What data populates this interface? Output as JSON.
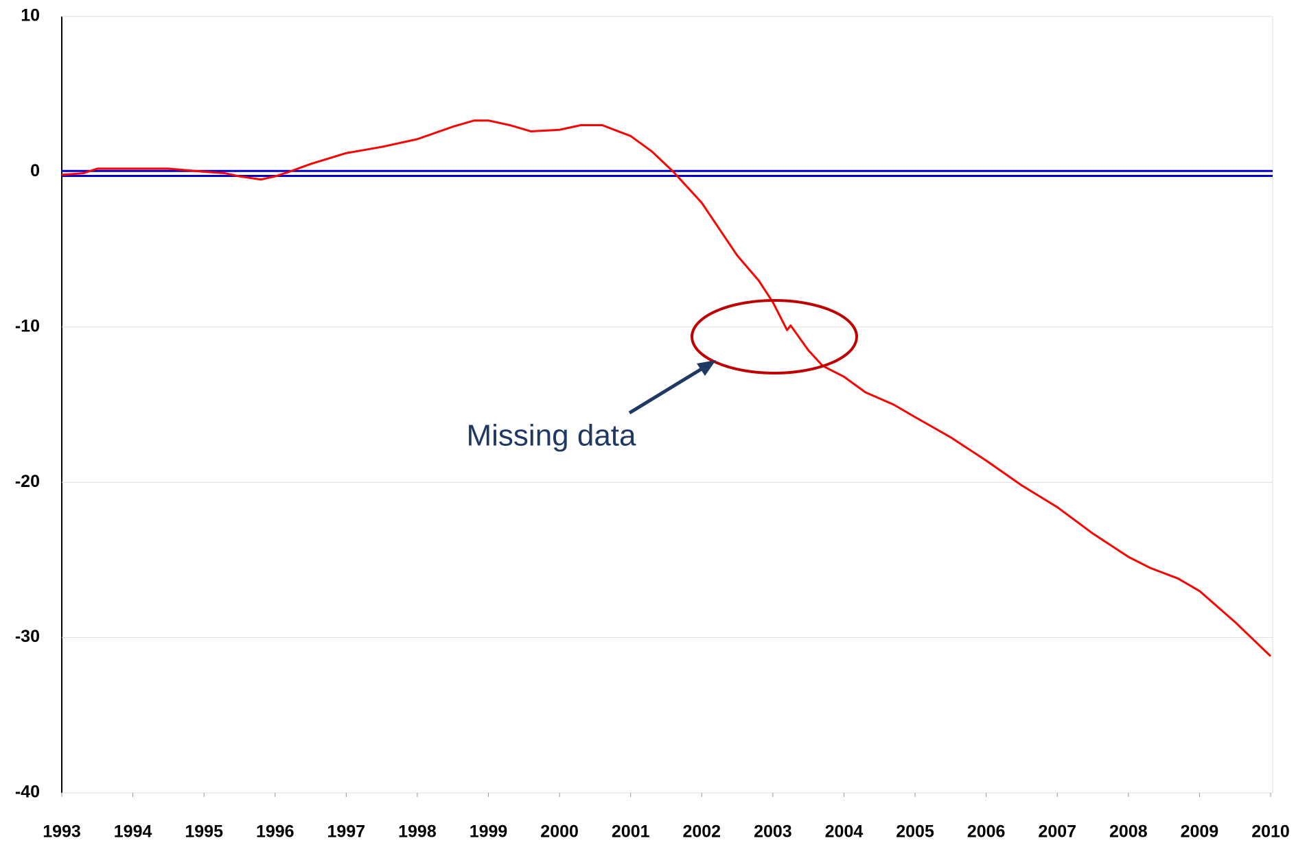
{
  "chart_data": {
    "type": "line",
    "x": [
      1993.0,
      1993.3,
      1993.5,
      1994.0,
      1994.5,
      1995.0,
      1995.3,
      1995.5,
      1995.8,
      1996.0,
      1996.2,
      1996.5,
      1997.0,
      1997.5,
      1998.0,
      1998.5,
      1998.8,
      1999.0,
      1999.3,
      1999.6,
      2000.0,
      2000.3,
      2000.6,
      2001.0,
      2001.3,
      2001.6,
      2002.0,
      2002.5,
      2002.8,
      2003.0,
      2003.2,
      2003.25,
      2003.5,
      2003.7,
      2004.0,
      2004.3,
      2004.7,
      2005.0,
      2005.5,
      2006.0,
      2006.5,
      2007.0,
      2007.5,
      2008.0,
      2008.3,
      2008.7,
      2009.0,
      2009.5,
      2010.0
    ],
    "series": [
      {
        "color": "#ff0000",
        "values": [
          -0.2,
          -0.1,
          0.2,
          0.2,
          0.2,
          0,
          -0.1,
          -0.3,
          -0.5,
          -0.3,
          0,
          0.5,
          1.2,
          1.6,
          2.1,
          2.9,
          3.3,
          3.3,
          3.0,
          2.6,
          2.7,
          3.0,
          3.0,
          2.3,
          1.3,
          0,
          -2.0,
          -5.4,
          -7.0,
          -8.4,
          -10.2,
          -9.9,
          -11.5,
          -12.5,
          -13.2,
          -14.2,
          -15.0,
          -15.8,
          -17.1,
          -18.6,
          -20.2,
          -21.6,
          -23.3,
          -24.8,
          -25.5,
          -26.2,
          -27.0,
          -29.0,
          -31.2
        ]
      }
    ],
    "hlines": [
      {
        "color": "#0000cc",
        "value": 0.05
      },
      {
        "color": "#0000cc",
        "value": -0.27
      }
    ],
    "annotation": "Missing data",
    "xlim": [
      1993,
      2010
    ],
    "xticks": [
      1993,
      1994,
      1995,
      1996,
      1997,
      1998,
      1999,
      2000,
      2001,
      2002,
      2003,
      2004,
      2005,
      2006,
      2007,
      2008,
      2009,
      2010
    ],
    "ylim": [
      -40,
      10
    ],
    "yticks": [
      10,
      0,
      -10,
      -20,
      -30,
      -40
    ],
    "grid": true
  }
}
